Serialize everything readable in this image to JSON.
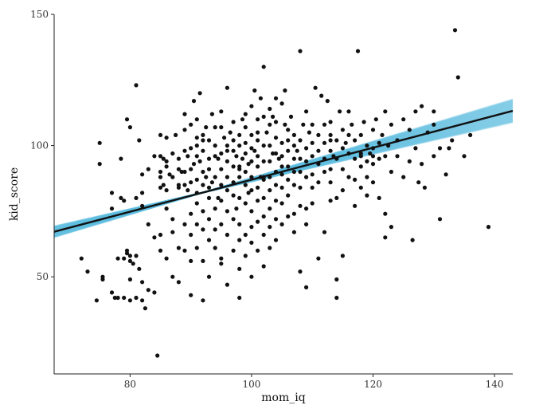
{
  "chart_data": {
    "type": "scatter",
    "title": "",
    "xlabel": "mom_iq",
    "ylabel": "kid_score",
    "xlim": [
      67.5,
      143
    ],
    "ylim": [
      13,
      150
    ],
    "x_ticks": [
      80,
      100,
      120,
      140
    ],
    "y_ticks": [
      50,
      100,
      150
    ],
    "x_tick_labels": [
      "80",
      "100",
      "120",
      "140"
    ],
    "y_tick_labels": [
      "50",
      "100",
      "150"
    ],
    "grid": false,
    "legend": "none",
    "colors": {
      "points": "#111111",
      "fit_line": "#111111",
      "uncertainty_band": "#5bbde0"
    },
    "fit_line": {
      "intercept": 26.0,
      "slope": 0.61
    },
    "uncertainty_band": {
      "pivot_x": 100.2,
      "half_width_at_pivot": 1.4,
      "half_width_growth_per_unit": 0.085
    },
    "points": [
      [
        72,
        57
      ],
      [
        73,
        52
      ],
      [
        74.5,
        41
      ],
      [
        75,
        101
      ],
      [
        75,
        93
      ],
      [
        75.5,
        50
      ],
      [
        75.5,
        49
      ],
      [
        77,
        82
      ],
      [
        77,
        76
      ],
      [
        77,
        44
      ],
      [
        77.5,
        42
      ],
      [
        78,
        57
      ],
      [
        78,
        42
      ],
      [
        78.5,
        95
      ],
      [
        78.5,
        80
      ],
      [
        79,
        79
      ],
      [
        79,
        57
      ],
      [
        79,
        42
      ],
      [
        79.5,
        110
      ],
      [
        79.5,
        60
      ],
      [
        79.5,
        59
      ],
      [
        80,
        107
      ],
      [
        80,
        58
      ],
      [
        80,
        56
      ],
      [
        80,
        49
      ],
      [
        80,
        41
      ],
      [
        80.5,
        55
      ],
      [
        81,
        123
      ],
      [
        81,
        80
      ],
      [
        81,
        58
      ],
      [
        81,
        42
      ],
      [
        81.5,
        102
      ],
      [
        81.5,
        53
      ],
      [
        82,
        89
      ],
      [
        82,
        82
      ],
      [
        82,
        48
      ],
      [
        82,
        41
      ],
      [
        82.5,
        38
      ],
      [
        83,
        70
      ],
      [
        83,
        45
      ],
      [
        84,
        96
      ],
      [
        84,
        65
      ],
      [
        84,
        44
      ],
      [
        84.5,
        20
      ],
      [
        85,
        104
      ],
      [
        85,
        96
      ],
      [
        85,
        88
      ],
      [
        85,
        84
      ],
      [
        85,
        66
      ],
      [
        85,
        60
      ],
      [
        85.5,
        95
      ],
      [
        85.5,
        85
      ],
      [
        86,
        103
      ],
      [
        86,
        92
      ],
      [
        86,
        83
      ],
      [
        86,
        76
      ],
      [
        86,
        57
      ],
      [
        86.5,
        89
      ],
      [
        87,
        97
      ],
      [
        87,
        88
      ],
      [
        87,
        72
      ],
      [
        87,
        67
      ],
      [
        87,
        50
      ],
      [
        87.5,
        104
      ],
      [
        88,
        95
      ],
      [
        88,
        91
      ],
      [
        88,
        84
      ],
      [
        88,
        61
      ],
      [
        88,
        48
      ],
      [
        88.5,
        90
      ],
      [
        89,
        112
      ],
      [
        89,
        98
      ],
      [
        89,
        90
      ],
      [
        89,
        85
      ],
      [
        89,
        70
      ],
      [
        89,
        60
      ],
      [
        89.5,
        96
      ],
      [
        89.5,
        83
      ],
      [
        90,
        108
      ],
      [
        90,
        99
      ],
      [
        90,
        91
      ],
      [
        90,
        86
      ],
      [
        90,
        74
      ],
      [
        90,
        66
      ],
      [
        90,
        56
      ],
      [
        90,
        43
      ],
      [
        90.5,
        117
      ],
      [
        90.5,
        93
      ],
      [
        91,
        110
      ],
      [
        91,
        100
      ],
      [
        91,
        96
      ],
      [
        91,
        87
      ],
      [
        91,
        82
      ],
      [
        91,
        78
      ],
      [
        91,
        70
      ],
      [
        91,
        61
      ],
      [
        91.5,
        120
      ],
      [
        91.5,
        94
      ],
      [
        92,
        104
      ],
      [
        92,
        98
      ],
      [
        92,
        90
      ],
      [
        92,
        85
      ],
      [
        92,
        75
      ],
      [
        92,
        68
      ],
      [
        92,
        56
      ],
      [
        92,
        41
      ],
      [
        92.5,
        107
      ],
      [
        92.5,
        88
      ],
      [
        93,
        102
      ],
      [
        93,
        95
      ],
      [
        93,
        91
      ],
      [
        93,
        84
      ],
      [
        93,
        80
      ],
      [
        93,
        72
      ],
      [
        93,
        64
      ],
      [
        93,
        50
      ],
      [
        93.5,
        112
      ],
      [
        93.5,
        86
      ],
      [
        94,
        100
      ],
      [
        94,
        96
      ],
      [
        94,
        88
      ],
      [
        94,
        76
      ],
      [
        94,
        68
      ],
      [
        94,
        61
      ],
      [
        94.5,
        95
      ],
      [
        94.5,
        80
      ],
      [
        95,
        107
      ],
      [
        95,
        97
      ],
      [
        95,
        91
      ],
      [
        95,
        85
      ],
      [
        95,
        79
      ],
      [
        95,
        70
      ],
      [
        95,
        57
      ],
      [
        95,
        55
      ],
      [
        95.5,
        103
      ],
      [
        96,
        122
      ],
      [
        96,
        100
      ],
      [
        96,
        94
      ],
      [
        96,
        88
      ],
      [
        96,
        83
      ],
      [
        96,
        75
      ],
      [
        96,
        66
      ],
      [
        96,
        47
      ],
      [
        96.5,
        105
      ],
      [
        97,
        109
      ],
      [
        97,
        98
      ],
      [
        97,
        92
      ],
      [
        97,
        86
      ],
      [
        97,
        81
      ],
      [
        97,
        72
      ],
      [
        97,
        60
      ],
      [
        97.5,
        96
      ],
      [
        97.5,
        76
      ],
      [
        98,
        104
      ],
      [
        98,
        100
      ],
      [
        98,
        91
      ],
      [
        98,
        88
      ],
      [
        98,
        80
      ],
      [
        98,
        70
      ],
      [
        98,
        64
      ],
      [
        98,
        53
      ],
      [
        98,
        42
      ],
      [
        98.5,
        110
      ],
      [
        98.5,
        95
      ],
      [
        99,
        107
      ],
      [
        99,
        101
      ],
      [
        99,
        97
      ],
      [
        99,
        90
      ],
      [
        99,
        85
      ],
      [
        99,
        78
      ],
      [
        99,
        66
      ],
      [
        99,
        58
      ],
      [
        99.5,
        93
      ],
      [
        99.5,
        82
      ],
      [
        100,
        115
      ],
      [
        100,
        104
      ],
      [
        100,
        99
      ],
      [
        100,
        94
      ],
      [
        100,
        88
      ],
      [
        100,
        83
      ],
      [
        100,
        75
      ],
      [
        100,
        63
      ],
      [
        100,
        50
      ],
      [
        100.5,
        121
      ],
      [
        100.5,
        98
      ],
      [
        101,
        110
      ],
      [
        101,
        102
      ],
      [
        101,
        96
      ],
      [
        101,
        92
      ],
      [
        101,
        84
      ],
      [
        101,
        79
      ],
      [
        101,
        71
      ],
      [
        101,
        60
      ],
      [
        101.5,
        118
      ],
      [
        101.5,
        88
      ],
      [
        102,
        130
      ],
      [
        102,
        100
      ],
      [
        102,
        94
      ],
      [
        102,
        88
      ],
      [
        102,
        80
      ],
      [
        102,
        73
      ],
      [
        102,
        66
      ],
      [
        102,
        54
      ],
      [
        102.5,
        105
      ],
      [
        103,
        114
      ],
      [
        103,
        100
      ],
      [
        103,
        94
      ],
      [
        103,
        88
      ],
      [
        103,
        83
      ],
      [
        103,
        76
      ],
      [
        103,
        69
      ],
      [
        103,
        61
      ],
      [
        103.5,
        111
      ],
      [
        103.5,
        97
      ],
      [
        104,
        118
      ],
      [
        104,
        103
      ],
      [
        104,
        97
      ],
      [
        104,
        90
      ],
      [
        104,
        85
      ],
      [
        104,
        79
      ],
      [
        104,
        72
      ],
      [
        104,
        64
      ],
      [
        104.5,
        95
      ],
      [
        105,
        116
      ],
      [
        105,
        101
      ],
      [
        105,
        96
      ],
      [
        105,
        89
      ],
      [
        105,
        84
      ],
      [
        105,
        78
      ],
      [
        105,
        70
      ],
      [
        105.5,
        121
      ],
      [
        105.5,
        108
      ],
      [
        106,
        102
      ],
      [
        106,
        98
      ],
      [
        106,
        92
      ],
      [
        106,
        87
      ],
      [
        106,
        81
      ],
      [
        106,
        73
      ],
      [
        106.5,
        111
      ],
      [
        107,
        100
      ],
      [
        107,
        95
      ],
      [
        107,
        90
      ],
      [
        107,
        85
      ],
      [
        107,
        74
      ],
      [
        107,
        67
      ],
      [
        107.5,
        98
      ],
      [
        108,
        136
      ],
      [
        108,
        102
      ],
      [
        108,
        95
      ],
      [
        108,
        90
      ],
      [
        108,
        84
      ],
      [
        108,
        77
      ],
      [
        108,
        52
      ],
      [
        108.5,
        108
      ],
      [
        109,
        99
      ],
      [
        109,
        94
      ],
      [
        109,
        88
      ],
      [
        109,
        76
      ],
      [
        109,
        70
      ],
      [
        109,
        46
      ],
      [
        109.5,
        105
      ],
      [
        110,
        101
      ],
      [
        110,
        96
      ],
      [
        110,
        89
      ],
      [
        110,
        84
      ],
      [
        110,
        78
      ],
      [
        110.5,
        122
      ],
      [
        111,
        104
      ],
      [
        111,
        98
      ],
      [
        111,
        93
      ],
      [
        111,
        86
      ],
      [
        111,
        57
      ],
      [
        111.5,
        119
      ],
      [
        112,
        101
      ],
      [
        112,
        95
      ],
      [
        112,
        90
      ],
      [
        112,
        67
      ],
      [
        112.5,
        117
      ],
      [
        113,
        109
      ],
      [
        113,
        102
      ],
      [
        113,
        98
      ],
      [
        113,
        91
      ],
      [
        113,
        86
      ],
      [
        113,
        79
      ],
      [
        113.5,
        96
      ],
      [
        114,
        102
      ],
      [
        114,
        95
      ],
      [
        114,
        80
      ],
      [
        114,
        49
      ],
      [
        114,
        42
      ],
      [
        114.5,
        113
      ],
      [
        115,
        106
      ],
      [
        115,
        99
      ],
      [
        115,
        91
      ],
      [
        115,
        83
      ],
      [
        115,
        58
      ],
      [
        115.5,
        101
      ],
      [
        116,
        113
      ],
      [
        116,
        97
      ],
      [
        116,
        88
      ],
      [
        116.5,
        108
      ],
      [
        117,
        102
      ],
      [
        117,
        95
      ],
      [
        117,
        87
      ],
      [
        117,
        77
      ],
      [
        117.5,
        136
      ],
      [
        118,
        104
      ],
      [
        118,
        96
      ],
      [
        118,
        92
      ],
      [
        118,
        84
      ],
      [
        118.5,
        109
      ],
      [
        119,
        100
      ],
      [
        119,
        94
      ],
      [
        119,
        88
      ],
      [
        119,
        81
      ],
      [
        119.5,
        97
      ],
      [
        120,
        106
      ],
      [
        120,
        99
      ],
      [
        120,
        93
      ],
      [
        120,
        86
      ],
      [
        120.5,
        110
      ],
      [
        121,
        101
      ],
      [
        121,
        95
      ],
      [
        121,
        80
      ],
      [
        121.5,
        104
      ],
      [
        122,
        113
      ],
      [
        122,
        96
      ],
      [
        122,
        74
      ],
      [
        122,
        65
      ],
      [
        122.5,
        100
      ],
      [
        123,
        108
      ],
      [
        123,
        90
      ],
      [
        123,
        69
      ],
      [
        124,
        102
      ],
      [
        124,
        96
      ],
      [
        125,
        110
      ],
      [
        125,
        88
      ],
      [
        126,
        106
      ],
      [
        126,
        94
      ],
      [
        126.5,
        64
      ],
      [
        127,
        113
      ],
      [
        127,
        99
      ],
      [
        127.5,
        86
      ],
      [
        128,
        115
      ],
      [
        128,
        93
      ],
      [
        128.5,
        84
      ],
      [
        129,
        105
      ],
      [
        130,
        113
      ],
      [
        130,
        108
      ],
      [
        130,
        96
      ],
      [
        131,
        99
      ],
      [
        131,
        72
      ],
      [
        132,
        89
      ],
      [
        132.5,
        99
      ],
      [
        133,
        102
      ],
      [
        133.5,
        144
      ],
      [
        134,
        126
      ],
      [
        135,
        96
      ],
      [
        136,
        104
      ],
      [
        139,
        69
      ],
      [
        113,
        104
      ],
      [
        107,
        104
      ],
      [
        99,
        112
      ],
      [
        102,
        111
      ],
      [
        95,
        113
      ],
      [
        104,
        109
      ],
      [
        100,
        69
      ],
      [
        102,
        87
      ],
      [
        98,
        92
      ],
      [
        91,
        103
      ],
      [
        88,
        85
      ],
      [
        85,
        90
      ],
      [
        83,
        91
      ],
      [
        82,
        77
      ],
      [
        86,
        94
      ],
      [
        89,
        106
      ],
      [
        92,
        102
      ],
      [
        94,
        107
      ],
      [
        97,
        102
      ],
      [
        96,
        98
      ],
      [
        101,
        105
      ],
      [
        103,
        108
      ],
      [
        110,
        108
      ],
      [
        112,
        108
      ],
      [
        109,
        113
      ],
      [
        116,
        104
      ],
      [
        118,
        97
      ],
      [
        120,
        96
      ],
      [
        105,
        92
      ],
      [
        106,
        106
      ]
    ]
  }
}
